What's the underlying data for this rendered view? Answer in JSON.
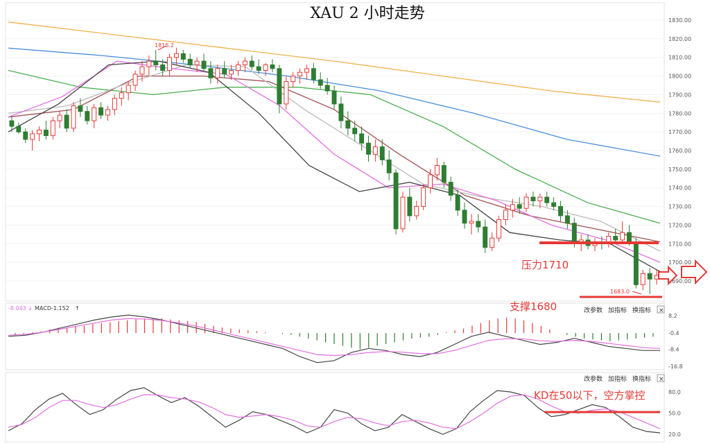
{
  "title": "XAU 2 小时走势",
  "colors": {
    "up": "#e53935",
    "down": "#2e7d32",
    "ma_short": "#444444",
    "ma_pink": "#e36ee0",
    "ma_gray": "#bbbbbb",
    "ma_brown": "#a05050",
    "ma_green": "#4caf50",
    "ma_blue": "#4a8fe0",
    "ma_orange": "#f2b04a",
    "annotation": "#e53935"
  },
  "price_axis": {
    "ticks": [
      "1830.00",
      "1820.00",
      "1810.00",
      "1800.00",
      "1790.00",
      "1780.00",
      "1770.00",
      "1760.00",
      "1750.00",
      "1740.00",
      "1730.00",
      "1720.00",
      "1710.00",
      "1700.00",
      "1690.00"
    ]
  },
  "annotations": {
    "high_label": "1815.2",
    "low_label": "1683.0",
    "resistance_text": "压力1710",
    "support_text": "支撑1680",
    "kd_text": "KD在50以下，空方掌控"
  },
  "macd_panel": {
    "header_value": "-8.043",
    "header_name": "MACD",
    "header_value2": "-1.152",
    "ticks": [
      "8.2",
      "-0.4",
      "-8.4",
      "-16.8"
    ]
  },
  "kd_panel": {
    "ticks": [
      "80.0",
      "50.0",
      "20.0"
    ]
  },
  "toolbar": {
    "params_label": "改参数",
    "add_label": "加指标",
    "switch_label": "换指标",
    "close_symbol": "×"
  },
  "chart_data": {
    "type": "candlestick",
    "title": "XAU 2 小时走势",
    "ylim": [
      1680,
      1835
    ],
    "support": 1680,
    "resistance": 1710,
    "period_high": 1815.2,
    "period_low": 1683.0,
    "candles": [
      [
        1776,
        1778,
        1770,
        1773
      ],
      [
        1773,
        1775,
        1769,
        1770
      ],
      [
        1770,
        1772,
        1764,
        1766
      ],
      [
        1766,
        1771,
        1760,
        1769
      ],
      [
        1769,
        1773,
        1765,
        1771
      ],
      [
        1771,
        1776,
        1766,
        1768
      ],
      [
        1768,
        1778,
        1766,
        1776
      ],
      [
        1776,
        1781,
        1772,
        1779
      ],
      [
        1779,
        1782,
        1770,
        1772
      ],
      [
        1772,
        1786,
        1770,
        1784
      ],
      [
        1784,
        1788,
        1778,
        1781
      ],
      [
        1781,
        1784,
        1774,
        1776
      ],
      [
        1776,
        1785,
        1772,
        1783
      ],
      [
        1783,
        1786,
        1777,
        1779
      ],
      [
        1779,
        1784,
        1776,
        1782
      ],
      [
        1782,
        1790,
        1779,
        1788
      ],
      [
        1788,
        1794,
        1784,
        1791
      ],
      [
        1791,
        1797,
        1787,
        1795
      ],
      [
        1795,
        1803,
        1792,
        1801
      ],
      [
        1801,
        1808,
        1797,
        1805
      ],
      [
        1805,
        1811,
        1800,
        1808
      ],
      [
        1808,
        1814,
        1803,
        1806
      ],
      [
        1806,
        1809,
        1800,
        1803
      ],
      [
        1803,
        1812,
        1800,
        1810
      ],
      [
        1810,
        1815.2,
        1806,
        1812
      ],
      [
        1812,
        1814,
        1807,
        1809
      ],
      [
        1809,
        1812,
        1804,
        1806
      ],
      [
        1806,
        1810,
        1802,
        1808
      ],
      [
        1808,
        1812,
        1803,
        1804
      ],
      [
        1804,
        1808,
        1796,
        1799
      ],
      [
        1799,
        1806,
        1796,
        1804
      ],
      [
        1804,
        1808,
        1799,
        1801
      ],
      [
        1801,
        1806,
        1798,
        1803
      ],
      [
        1803,
        1808,
        1800,
        1806
      ],
      [
        1806,
        1810,
        1802,
        1808
      ],
      [
        1808,
        1811,
        1803,
        1805
      ],
      [
        1805,
        1809,
        1801,
        1803
      ],
      [
        1803,
        1807,
        1800,
        1806
      ],
      [
        1806,
        1809,
        1802,
        1804
      ],
      [
        1804,
        1806,
        1780,
        1785
      ],
      [
        1785,
        1800,
        1782,
        1797
      ],
      [
        1797,
        1802,
        1794,
        1800
      ],
      [
        1800,
        1804,
        1796,
        1802
      ],
      [
        1802,
        1806,
        1798,
        1804
      ],
      [
        1804,
        1807,
        1796,
        1798
      ],
      [
        1798,
        1802,
        1793,
        1795
      ],
      [
        1795,
        1799,
        1790,
        1792
      ],
      [
        1792,
        1795,
        1782,
        1785
      ],
      [
        1785,
        1789,
        1772,
        1776
      ],
      [
        1776,
        1781,
        1768,
        1772
      ],
      [
        1772,
        1776,
        1765,
        1769
      ],
      [
        1769,
        1773,
        1760,
        1764
      ],
      [
        1764,
        1768,
        1754,
        1758
      ],
      [
        1758,
        1766,
        1754,
        1762
      ],
      [
        1762,
        1766,
        1752,
        1755
      ],
      [
        1755,
        1760,
        1744,
        1748
      ],
      [
        1748,
        1750,
        1715,
        1718
      ],
      [
        1718,
        1738,
        1716,
        1735
      ],
      [
        1735,
        1740,
        1722,
        1725
      ],
      [
        1725,
        1733,
        1723,
        1730
      ],
      [
        1730,
        1742,
        1728,
        1740
      ],
      [
        1740,
        1750,
        1737,
        1747
      ],
      [
        1747,
        1756,
        1744,
        1752
      ],
      [
        1752,
        1754,
        1740,
        1743
      ],
      [
        1743,
        1746,
        1733,
        1736
      ],
      [
        1736,
        1739,
        1725,
        1728
      ],
      [
        1728,
        1732,
        1718,
        1721
      ],
      [
        1721,
        1726,
        1715,
        1722
      ],
      [
        1722,
        1726,
        1716,
        1719
      ],
      [
        1719,
        1723,
        1705,
        1708
      ],
      [
        1708,
        1716,
        1706,
        1713
      ],
      [
        1713,
        1725,
        1711,
        1723
      ],
      [
        1723,
        1731,
        1720,
        1728
      ],
      [
        1728,
        1734,
        1724,
        1731
      ],
      [
        1731,
        1735,
        1726,
        1729
      ],
      [
        1729,
        1737,
        1727,
        1735
      ],
      [
        1735,
        1738,
        1730,
        1733
      ],
      [
        1733,
        1737,
        1729,
        1735
      ],
      [
        1735,
        1738,
        1730,
        1732
      ],
      [
        1732,
        1735,
        1728,
        1730
      ],
      [
        1730,
        1733,
        1722,
        1725
      ],
      [
        1725,
        1728,
        1718,
        1721
      ],
      [
        1721,
        1724,
        1708,
        1710
      ],
      [
        1710,
        1715,
        1706,
        1712
      ],
      [
        1712,
        1715,
        1707,
        1709
      ],
      [
        1709,
        1713,
        1706,
        1711
      ],
      [
        1711,
        1714,
        1707,
        1710
      ],
      [
        1710,
        1716,
        1708,
        1714
      ],
      [
        1714,
        1718,
        1710,
        1712
      ],
      [
        1712,
        1722,
        1710,
        1716
      ],
      [
        1716,
        1720,
        1709,
        1711
      ],
      [
        1711,
        1713,
        1686,
        1688
      ],
      [
        1688,
        1696,
        1685,
        1694
      ],
      [
        1694,
        1697,
        1683,
        1691
      ],
      [
        1691,
        1696,
        1688,
        1693
      ]
    ],
    "moving_averages": [
      {
        "values": [
          1829,
          1822,
          1815,
          1808,
          1800,
          1792,
          1786
        ]
      },
      {
        "values": [
          1815,
          1811,
          1806,
          1800,
          1792,
          1780,
          1766,
          1757
        ]
      },
      {
        "values": [
          1803,
          1794,
          1790,
          1794,
          1794,
          1790,
          1773,
          1750,
          1732,
          1721
        ]
      },
      {
        "values": [
          1778,
          1782,
          1800,
          1800,
          1797,
          1782,
          1758,
          1736,
          1725,
          1718,
          1711
        ]
      },
      {
        "values": [
          1780,
          1784,
          1796,
          1806,
          1805,
          1782,
          1762,
          1742,
          1735,
          1730,
          1722,
          1706
        ]
      },
      {
        "values": [
          1778,
          1789,
          1808,
          1804,
          1801,
          1784,
          1758,
          1740,
          1742,
          1733,
          1720,
          1712,
          1700
        ]
      },
      {
        "values": [
          1770,
          1785,
          1806,
          1808,
          1802,
          1780,
          1752,
          1738,
          1743,
          1736,
          1716,
          1712,
          1710,
          1695
        ]
      }
    ],
    "macd": {
      "header": {
        "dif": -8.043,
        "dea": -1.152
      },
      "ylim": [
        -16.8,
        8.2
      ],
      "histogram": [
        -1,
        -0.5,
        0.5,
        1,
        2,
        3,
        3,
        4,
        4,
        5,
        5.5,
        6,
        6.5,
        7,
        7.5,
        8,
        8,
        8,
        7.5,
        7,
        6.5,
        6,
        5,
        4,
        3,
        2.5,
        2,
        1.5,
        1,
        0.5,
        0,
        -0.5,
        -1,
        -2,
        -3,
        -4,
        -5,
        -6,
        -7,
        -8,
        -9,
        -8,
        -7,
        -6,
        -5,
        -4,
        -3,
        -2.5,
        -2,
        -1,
        0.5,
        1.5,
        2.5,
        4,
        5.5,
        7,
        8,
        8.5,
        8,
        7,
        5.5,
        4,
        2,
        0,
        -1,
        -2,
        -3,
        -3.5,
        -4,
        -4.5,
        -4,
        -3.5,
        -3,
        -2.5,
        -2
      ],
      "dif": [
        -2,
        -1.5,
        0,
        2,
        4,
        6,
        7.5,
        8.5,
        7.5,
        6,
        4,
        2,
        0,
        -2,
        -4,
        -6,
        -8,
        -12,
        -15,
        -14,
        -10,
        -8,
        -9,
        -11,
        -12,
        -10,
        -6,
        -2,
        0,
        -2,
        -4,
        -6,
        -5,
        -3,
        -5,
        -7,
        -8,
        -9,
        -9
      ],
      "dea": [
        -1.5,
        -1,
        0,
        1.5,
        3,
        4.5,
        6,
        6.8,
        6.5,
        5.8,
        4.5,
        3,
        1,
        -1,
        -3,
        -5,
        -7,
        -9,
        -11,
        -11.5,
        -11,
        -10,
        -9.5,
        -9.8,
        -10.5,
        -10.6,
        -9,
        -6.5,
        -4,
        -3.2,
        -3.2,
        -4.2,
        -4.5,
        -4,
        -4.5,
        -5.5,
        -6.5,
        -7.5,
        -8
      ]
    },
    "kd": {
      "ylim": [
        15,
        95
      ],
      "k": [
        25,
        35,
        55,
        70,
        78,
        62,
        48,
        55,
        70,
        82,
        86,
        75,
        65,
        72,
        60,
        45,
        30,
        40,
        52,
        48,
        40,
        32,
        22,
        30,
        55,
        50,
        35,
        25,
        30,
        48,
        38,
        28,
        20,
        28,
        52,
        68,
        82,
        80,
        75,
        58,
        45,
        48,
        55,
        62,
        58,
        45,
        30,
        24,
        22
      ],
      "d": [
        30,
        34,
        44,
        58,
        68,
        68,
        62,
        58,
        62,
        70,
        76,
        76,
        72,
        70,
        66,
        58,
        48,
        44,
        46,
        48,
        45,
        40,
        32,
        30,
        38,
        44,
        42,
        36,
        32,
        38,
        40,
        36,
        30,
        28,
        38,
        50,
        64,
        74,
        76,
        70,
        60,
        52,
        50,
        54,
        56,
        52,
        44,
        36,
        28
      ]
    }
  }
}
